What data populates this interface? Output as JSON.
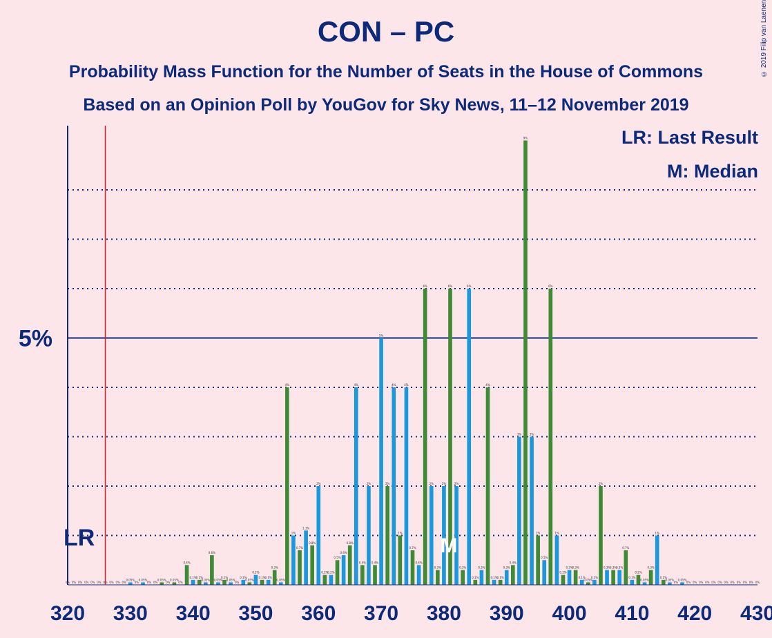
{
  "header": {
    "title": "CON – PC",
    "subtitle1": "Probability Mass Function for the Number of Seats in the House of Commons",
    "subtitle2": "Based on an Opinion Poll by YouGov for Sky News, 11–12 November 2019",
    "copyright": "© 2019 Filip van Laenen"
  },
  "legend": {
    "lr": "LR: Last Result",
    "m": "M: Median"
  },
  "chart_data": {
    "type": "bar",
    "title": "CON – PC",
    "xlabel": "",
    "ylabel": "",
    "xlim": [
      320,
      430
    ],
    "ylim": [
      0,
      9.3
    ],
    "x_ticks": [
      "320",
      "330",
      "340",
      "350",
      "360",
      "370",
      "380",
      "390",
      "400",
      "410",
      "420",
      "430"
    ],
    "y_major_label": "5%",
    "y_major_value": 5,
    "y_gridlines": [
      1,
      2,
      3,
      4,
      5,
      6,
      7,
      8
    ],
    "last_result": {
      "seat": 326,
      "label": "LR"
    },
    "median": {
      "seat": 381,
      "label": "M"
    },
    "colors": {
      "blue": "#1a98dc",
      "green": "#3e8a35",
      "axis": "#0d2a7a",
      "lr_line": "#d21f2a",
      "background": "#fde6ea"
    },
    "series": [
      {
        "name": "Probability",
        "x": [
          320,
          321,
          322,
          323,
          324,
          325,
          326,
          327,
          328,
          329,
          330,
          331,
          332,
          333,
          334,
          335,
          336,
          337,
          338,
          339,
          340,
          341,
          342,
          343,
          344,
          345,
          346,
          347,
          348,
          349,
          350,
          351,
          352,
          353,
          354,
          355,
          356,
          357,
          358,
          359,
          360,
          361,
          362,
          363,
          364,
          365,
          366,
          367,
          368,
          369,
          370,
          371,
          372,
          373,
          374,
          375,
          376,
          377,
          378,
          379,
          380,
          381,
          382,
          383,
          384,
          385,
          386,
          387,
          388,
          389,
          390,
          391,
          392,
          393,
          394,
          395,
          396,
          397,
          398,
          399,
          400,
          401,
          402,
          403,
          404,
          405,
          406,
          407,
          408,
          409,
          410,
          411,
          412,
          413,
          414,
          415,
          416,
          417,
          418,
          419,
          420,
          421,
          422,
          423,
          424,
          425,
          426,
          427,
          428,
          429,
          430
        ],
        "values": [
          0,
          0,
          0,
          0,
          0,
          0,
          0,
          0,
          0,
          0,
          0.05,
          0,
          0.05,
          0,
          0,
          0.05,
          0,
          0.05,
          0,
          0.4,
          0.1,
          0.1,
          0.05,
          0.6,
          0.05,
          0.1,
          0.05,
          0,
          0.1,
          0.05,
          0.2,
          0.1,
          0.1,
          0.3,
          0.05,
          4,
          1,
          0.7,
          1.1,
          0.8,
          2,
          0.2,
          0.2,
          0.5,
          0.6,
          0.8,
          4,
          0.4,
          2,
          0.4,
          5,
          2,
          4,
          1,
          4,
          0.7,
          0.4,
          6,
          2,
          0.3,
          2,
          6,
          2,
          0.3,
          6,
          0.1,
          0.3,
          4,
          0.1,
          0.1,
          0.3,
          0.4,
          3,
          9,
          3,
          1,
          0.5,
          6,
          1,
          0.2,
          0.3,
          0.3,
          0.1,
          0.05,
          0.1,
          2,
          0.3,
          0.3,
          0.3,
          0.7,
          0.1,
          0.2,
          0.05,
          0.3,
          1,
          0.1,
          0.05,
          0,
          0.05,
          0,
          0,
          0,
          0,
          0,
          0,
          0,
          0,
          0,
          0,
          0,
          0
        ]
      }
    ]
  }
}
